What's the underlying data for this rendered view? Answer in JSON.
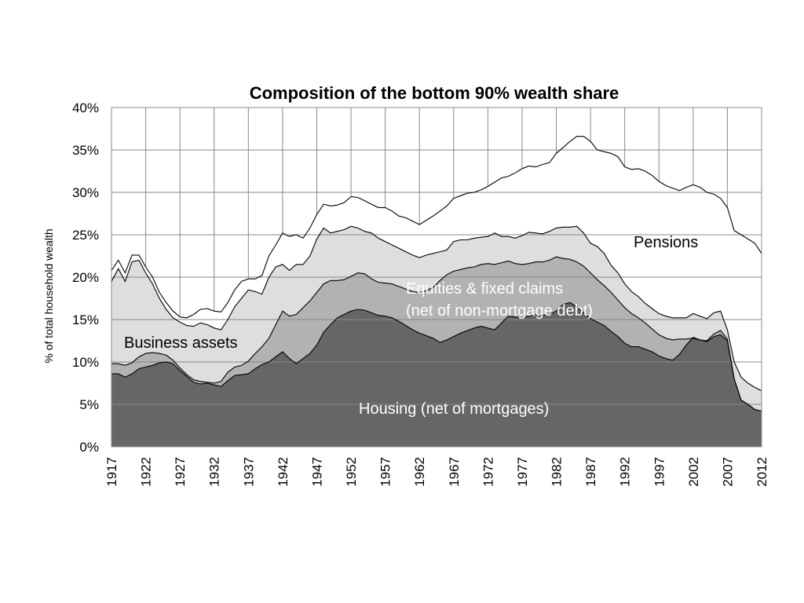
{
  "chart_data": {
    "type": "area",
    "stacked": true,
    "title": "Composition of the bottom 90% wealth share",
    "ylabel": "% of total household wealth",
    "xlabel": "",
    "ylim": [
      0,
      40
    ],
    "xlim": [
      1917,
      2012
    ],
    "grid": true,
    "y_ticks": [
      "0%",
      "5%",
      "10%",
      "15%",
      "20%",
      "25%",
      "30%",
      "35%",
      "40%"
    ],
    "x_ticks": [
      "1917",
      "1922",
      "1927",
      "1932",
      "1937",
      "1942",
      "1947",
      "1952",
      "1957",
      "1962",
      "1967",
      "1972",
      "1977",
      "1982",
      "1987",
      "1992",
      "1997",
      "2002",
      "2007",
      "2012"
    ],
    "x": [
      1917,
      1918,
      1919,
      1920,
      1921,
      1922,
      1923,
      1924,
      1925,
      1926,
      1927,
      1928,
      1929,
      1930,
      1931,
      1932,
      1933,
      1934,
      1935,
      1936,
      1937,
      1938,
      1939,
      1940,
      1941,
      1942,
      1943,
      1944,
      1945,
      1946,
      1947,
      1948,
      1949,
      1950,
      1951,
      1952,
      1953,
      1954,
      1955,
      1956,
      1957,
      1958,
      1959,
      1960,
      1961,
      1962,
      1963,
      1964,
      1965,
      1966,
      1967,
      1968,
      1969,
      1970,
      1971,
      1972,
      1973,
      1974,
      1975,
      1976,
      1977,
      1978,
      1979,
      1980,
      1981,
      1982,
      1983,
      1984,
      1985,
      1986,
      1987,
      1988,
      1989,
      1990,
      1991,
      1992,
      1993,
      1994,
      1995,
      1996,
      1997,
      1998,
      1999,
      2000,
      2001,
      2002,
      2003,
      2004,
      2005,
      2006,
      2007,
      2008,
      2009,
      2010,
      2011,
      2012
    ],
    "series": [
      {
        "name": "Housing (net of mortgages)",
        "color": "#666666",
        "cumulative": [
          8.6,
          8.6,
          8.2,
          8.6,
          9.2,
          9.4,
          9.6,
          9.9,
          10.0,
          9.8,
          9.0,
          8.3,
          7.6,
          7.4,
          7.5,
          7.3,
          7.1,
          7.8,
          8.4,
          8.5,
          8.6,
          9.2,
          9.7,
          10.0,
          10.6,
          11.2,
          10.4,
          9.8,
          10.4,
          11.0,
          12.0,
          13.5,
          14.4,
          15.2,
          15.6,
          16.0,
          16.2,
          16.1,
          15.8,
          15.5,
          15.4,
          15.2,
          14.8,
          14.3,
          13.8,
          13.4,
          13.1,
          12.8,
          12.3,
          12.6,
          13.0,
          13.4,
          13.7,
          14.0,
          14.2,
          14.0,
          13.8,
          14.6,
          15.4,
          15.3,
          15.2,
          15.4,
          15.6,
          15.5,
          15.6,
          16.0,
          16.8,
          17.0,
          16.5,
          15.8,
          15.1,
          14.7,
          14.3,
          13.6,
          13.0,
          12.2,
          11.8,
          11.8,
          11.5,
          11.2,
          10.7,
          10.4,
          10.2,
          10.9,
          12.0,
          12.9,
          12.6,
          12.4,
          13.0,
          13.2,
          12.5,
          8.0,
          5.5,
          5.0,
          4.4,
          4.2
        ]
      },
      {
        "name": "Business assets",
        "color": "#b2b2b2",
        "cumulative": [
          9.8,
          9.8,
          9.6,
          9.9,
          10.6,
          11.0,
          11.1,
          11.0,
          10.8,
          10.2,
          9.3,
          8.5,
          7.9,
          7.7,
          7.6,
          7.5,
          7.7,
          8.8,
          9.4,
          9.6,
          10.1,
          11.0,
          11.8,
          12.8,
          14.4,
          16.0,
          15.4,
          15.6,
          16.4,
          17.2,
          18.2,
          19.2,
          19.6,
          19.6,
          19.7,
          20.1,
          20.5,
          20.4,
          19.8,
          19.4,
          19.3,
          19.2,
          18.9,
          18.6,
          18.3,
          18.2,
          18.4,
          18.8,
          19.6,
          20.3,
          20.7,
          20.9,
          21.1,
          21.2,
          21.5,
          21.6,
          21.5,
          21.7,
          21.9,
          21.6,
          21.5,
          21.6,
          21.8,
          21.8,
          22.0,
          22.4,
          22.2,
          22.1,
          21.8,
          21.3,
          20.5,
          19.7,
          19.0,
          18.2,
          17.3,
          16.4,
          15.7,
          15.2,
          14.6,
          13.9,
          13.2,
          12.8,
          12.6,
          12.7,
          12.7,
          12.8,
          12.6,
          12.5,
          13.3,
          13.7,
          12.7,
          8.0,
          5.5,
          5.0,
          4.4,
          4.2
        ]
      },
      {
        "name": "Equities & fixed claims (net of non-mortgage debt)",
        "color": "#dedede",
        "cumulative": [
          19.5,
          21.0,
          19.5,
          21.8,
          22.0,
          20.5,
          19.2,
          17.5,
          16.2,
          15.2,
          14.7,
          14.3,
          14.2,
          14.6,
          14.4,
          14.0,
          13.8,
          15.0,
          16.5,
          17.5,
          18.5,
          18.3,
          18.0,
          20.0,
          21.2,
          21.5,
          20.8,
          21.5,
          21.5,
          22.5,
          24.5,
          25.8,
          25.2,
          25.4,
          25.6,
          26.0,
          25.8,
          25.4,
          25.2,
          24.6,
          24.2,
          23.8,
          23.4,
          23.0,
          22.6,
          22.3,
          22.6,
          22.8,
          23.0,
          23.2,
          24.2,
          24.4,
          24.4,
          24.6,
          24.7,
          24.8,
          25.2,
          24.8,
          24.8,
          24.6,
          24.9,
          25.3,
          25.2,
          25.1,
          25.4,
          25.8,
          25.9,
          25.9,
          26.0,
          25.2,
          24.0,
          23.6,
          22.8,
          21.4,
          20.5,
          19.2,
          18.3,
          17.7,
          16.9,
          16.3,
          15.7,
          15.4,
          15.2,
          15.2,
          15.2,
          15.7,
          15.4,
          15.1,
          15.8,
          16.0,
          13.8,
          10.0,
          8.2,
          7.5,
          7.0,
          6.6
        ]
      },
      {
        "name": "Pensions",
        "color": "#ffffff",
        "cumulative": [
          20.8,
          22.0,
          20.5,
          22.6,
          22.6,
          21.2,
          20.0,
          18.2,
          17.0,
          16.0,
          15.3,
          15.2,
          15.6,
          16.2,
          16.3,
          16.0,
          15.9,
          17.0,
          18.5,
          19.5,
          19.8,
          19.8,
          20.2,
          22.5,
          23.8,
          25.2,
          24.8,
          25.0,
          24.6,
          25.8,
          27.4,
          28.6,
          28.4,
          28.5,
          28.8,
          29.5,
          29.4,
          29.0,
          28.6,
          28.2,
          28.2,
          27.8,
          27.2,
          27.0,
          26.6,
          26.2,
          26.7,
          27.2,
          27.8,
          28.4,
          29.3,
          29.6,
          29.9,
          30.0,
          30.3,
          30.7,
          31.2,
          31.7,
          31.9,
          32.3,
          32.8,
          33.1,
          33.0,
          33.3,
          33.5,
          34.6,
          35.3,
          36.0,
          36.6,
          36.6,
          36.0,
          35.0,
          34.8,
          34.6,
          34.2,
          33.0,
          32.7,
          32.8,
          32.5,
          32.0,
          31.3,
          30.8,
          30.5,
          30.2,
          30.6,
          30.9,
          30.6,
          30.0,
          29.8,
          29.3,
          28.2,
          25.5,
          25.0,
          24.5,
          24.0,
          22.8
        ]
      }
    ],
    "annotations": [
      {
        "text": "Business assets",
        "color": "#000000"
      },
      {
        "text": "Equities & fixed claims",
        "color": "#ffffff"
      },
      {
        "text": "(net of non-mortgage debt)",
        "color": "#ffffff"
      },
      {
        "text": "Housing (net of mortgages)",
        "color": "#ffffff"
      },
      {
        "text": "Pensions",
        "color": "#000000"
      }
    ]
  }
}
